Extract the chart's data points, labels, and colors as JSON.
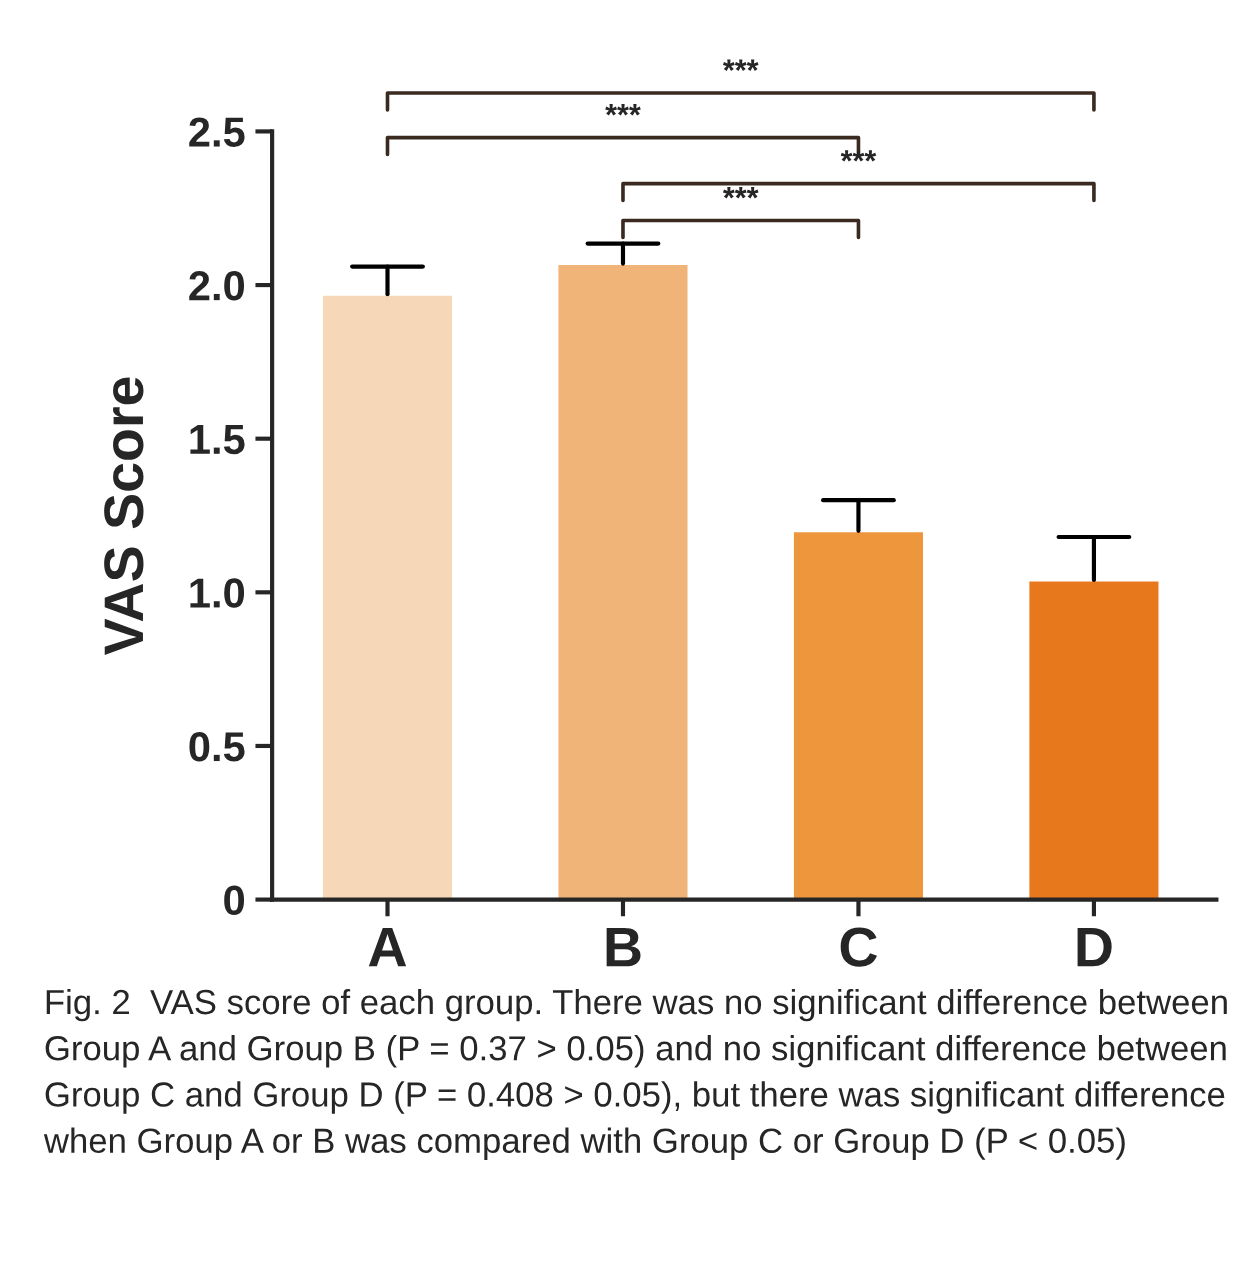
{
  "chart_data": {
    "type": "bar",
    "ylabel": "VAS Score",
    "categories": [
      "A",
      "B",
      "C",
      "D"
    ],
    "values": [
      1.97,
      2.07,
      1.2,
      1.04
    ],
    "colors": [
      "#f6d8b8",
      "#f0b478",
      "#ed963c",
      "#e8781c"
    ],
    "errors": [
      [
        1.97,
        2.06
      ],
      [
        2.07,
        2.135
      ],
      [
        1.2,
        1.3
      ],
      [
        1.04,
        1.18
      ]
    ],
    "ylim": [
      0,
      2.5
    ],
    "yticks": [
      {
        "value": 0,
        "label": "0"
      },
      0.5,
      {
        "value": 1,
        "label": "1.0"
      },
      1.5,
      {
        "value": 2,
        "label": "2.0"
      },
      2.5
    ],
    "grid": false,
    "legend": false,
    "annotations": [
      "***",
      "***",
      "***",
      "***",
      "Fig. 2  VAS score of each group. There was no significant difference between Group A and Group B (P = 0.37 > 0.05) and no significant difference between Group C and Group D (P = 0.408 > 0.05), but there was significant difference when Group A or B was compared with Group C or Group D (P < 0.05)"
    ]
  }
}
